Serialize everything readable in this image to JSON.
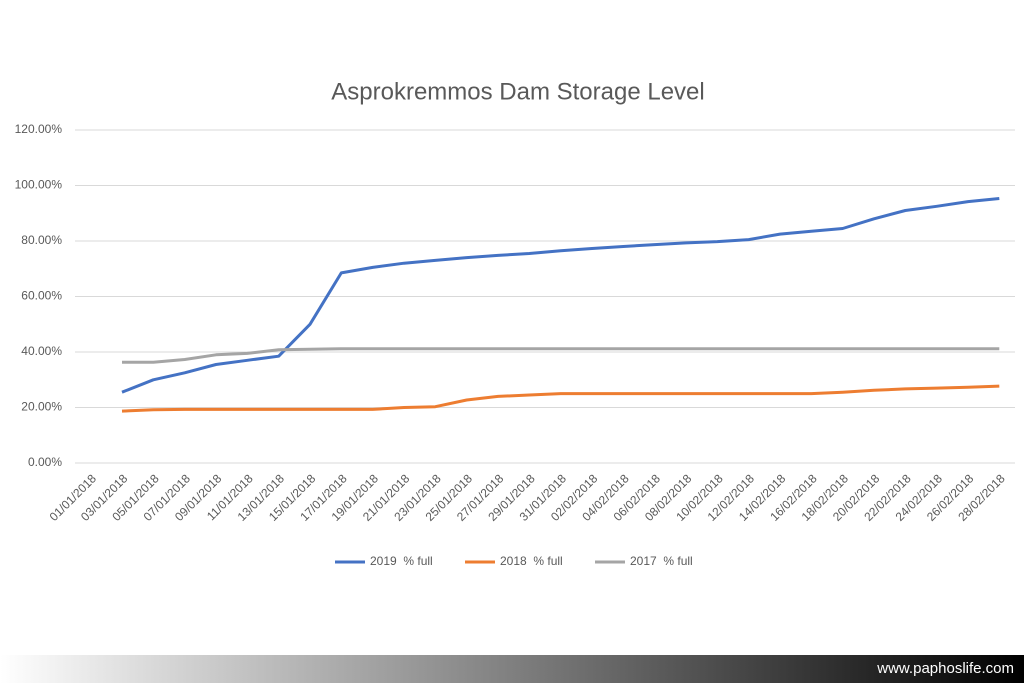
{
  "chart_data": {
    "type": "line",
    "title": "Asprokremmos Dam Storage Level",
    "categories": [
      "01/01/2018",
      "03/01/2018",
      "05/01/2018",
      "07/01/2018",
      "09/01/2018",
      "11/01/2018",
      "13/01/2018",
      "15/01/2018",
      "17/01/2018",
      "19/01/2018",
      "21/01/2018",
      "23/01/2018",
      "25/01/2018",
      "27/01/2018",
      "29/01/2018",
      "31/01/2018",
      "02/02/2018",
      "04/02/2018",
      "06/02/2018",
      "08/02/2018",
      "10/02/2018",
      "12/02/2018",
      "14/02/2018",
      "16/02/2018",
      "18/02/2018",
      "20/02/2018",
      "22/02/2018",
      "24/02/2018",
      "26/02/2018",
      "28/02/2018"
    ],
    "series": [
      {
        "name": "2019  % full",
        "color": "#4472c4",
        "values": [
          null,
          25.5,
          30,
          32.5,
          35.5,
          37,
          38.5,
          50,
          68.5,
          70.5,
          72,
          73,
          74,
          74.8,
          75.5,
          76.5,
          77.3,
          78,
          78.7,
          79.3,
          79.8,
          80.5,
          82.5,
          83.5,
          84.5,
          88,
          91,
          92.5,
          94.2,
          95.3
        ]
      },
      {
        "name": "2018  % full",
        "color": "#ed7d31",
        "values": [
          null,
          18.7,
          19.2,
          19.3,
          19.3,
          19.3,
          19.3,
          19.3,
          19.3,
          19.3,
          20,
          20.3,
          22.7,
          24,
          24.5,
          25,
          25,
          25,
          25,
          25,
          25,
          25,
          25,
          25,
          25.5,
          26.2,
          26.7,
          27,
          27.3,
          27.7
        ]
      },
      {
        "name": "2017  % full",
        "color": "#a5a5a5",
        "values": [
          null,
          36.3,
          36.3,
          37.3,
          39,
          39.5,
          40.8,
          41,
          41.2,
          41.2,
          41.2,
          41.2,
          41.2,
          41.2,
          41.2,
          41.2,
          41.2,
          41.2,
          41.2,
          41.2,
          41.2,
          41.2,
          41.2,
          41.2,
          41.2,
          41.2,
          41.2,
          41.2,
          41.2,
          41.2
        ]
      }
    ],
    "ylim": [
      0,
      120
    ],
    "yticks": [
      {
        "value": 0,
        "label": "0.00%"
      },
      {
        "value": 20,
        "label": "20.00%"
      },
      {
        "value": 40,
        "label": "40.00%"
      },
      {
        "value": 60,
        "label": "60.00%"
      },
      {
        "value": 80,
        "label": "80.00%"
      },
      {
        "value": 100,
        "label": "100.00%"
      },
      {
        "value": 120,
        "label": "120.00%"
      }
    ],
    "grid": true,
    "legend": "bottom"
  },
  "footer": "www.paphoslife.com"
}
